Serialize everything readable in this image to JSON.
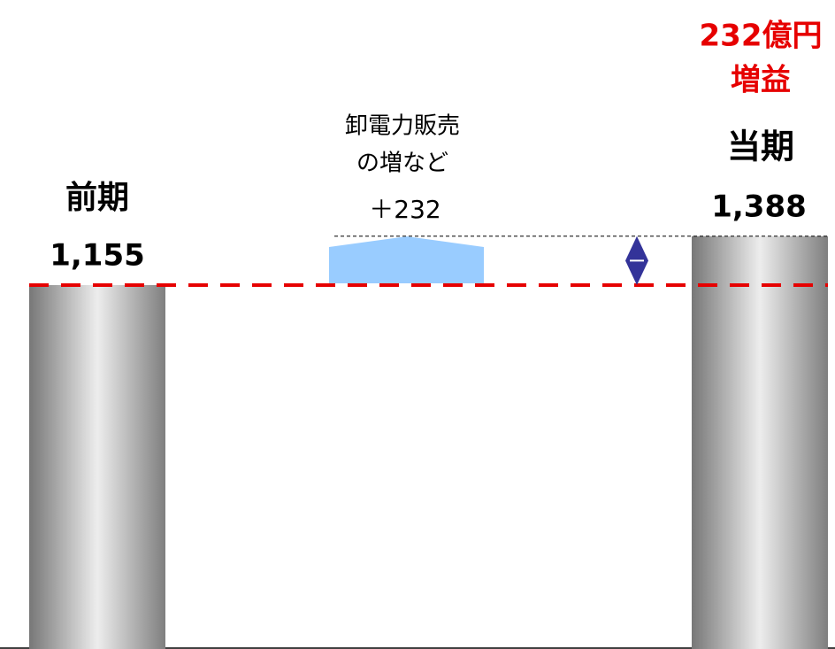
{
  "chart_data": {
    "type": "waterfall",
    "categories": [
      "前期",
      [
        "卸電力販売",
        "の増など"
      ],
      "当期"
    ],
    "values": [
      1155,
      232,
      1388
    ],
    "value_labels": [
      "1,155",
      "＋232",
      "1,388"
    ],
    "colors": [
      "#9a9a9a",
      "#99ccff",
      "#9a9a9a"
    ],
    "annotation": {
      "lines": [
        "232億円",
        "増益"
      ],
      "color": "#e60000"
    }
  }
}
